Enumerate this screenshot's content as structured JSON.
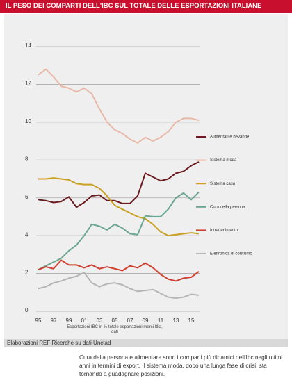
{
  "chart_data": {
    "type": "line",
    "title": "IL PESO DEI COMPARTI DELL'IBC SUL TOTALE DELLE ESPORTAZIONI ITALIANE",
    "x_label": "Esportazioni IBC in % totale esportazioni merci Itlia, dati",
    "categories": [
      "95",
      null,
      "97",
      null,
      "99",
      null,
      "01",
      null,
      "03",
      null,
      "05",
      null,
      "07",
      null,
      "09",
      null,
      "11",
      null,
      "13",
      null,
      "15",
      null
    ],
    "ylim": [
      0,
      14
    ],
    "yticks": [
      0,
      2,
      4,
      6,
      8,
      10,
      12,
      14
    ],
    "grid": true,
    "legend": "right",
    "series": [
      {
        "name": "Alimentari e bevande",
        "color": "#6b1a1f",
        "values": [
          5.9,
          5.85,
          5.75,
          5.8,
          6.05,
          5.5,
          5.75,
          6.1,
          6.15,
          5.85,
          5.85,
          5.7,
          5.7,
          6.1,
          7.3,
          7.1,
          6.9,
          7.0,
          7.3,
          7.4,
          7.7,
          7.9
        ]
      },
      {
        "name": "Sistema moda",
        "color": "#e8b8a8",
        "values": [
          12.5,
          12.8,
          12.4,
          11.9,
          11.8,
          11.6,
          11.8,
          11.5,
          10.7,
          10.0,
          9.6,
          9.4,
          9.1,
          8.9,
          9.2,
          9.0,
          9.2,
          9.5,
          10.0,
          10.2,
          10.2,
          10.1
        ]
      },
      {
        "name": "Sistema casa",
        "color": "#c9a020",
        "values": [
          7.0,
          7.0,
          7.05,
          7.0,
          6.95,
          6.75,
          6.7,
          6.7,
          6.5,
          6.1,
          5.6,
          5.4,
          5.2,
          5.0,
          4.9,
          4.6,
          4.2,
          4.0,
          4.05,
          4.1,
          4.15,
          4.1
        ]
      },
      {
        "name": "Cura della persona",
        "color": "#6aa68f",
        "values": [
          2.2,
          2.4,
          2.6,
          2.8,
          3.2,
          3.5,
          4.0,
          4.6,
          4.5,
          4.3,
          4.6,
          4.4,
          4.1,
          4.05,
          5.05,
          5.0,
          5.0,
          5.4,
          6.0,
          6.25,
          5.9,
          6.3
        ]
      },
      {
        "name": "Intrattenimento",
        "color": "#d04030",
        "values": [
          2.2,
          2.35,
          2.25,
          2.7,
          2.45,
          2.45,
          2.3,
          2.45,
          2.25,
          2.35,
          2.25,
          2.15,
          2.4,
          2.3,
          2.55,
          2.3,
          1.95,
          1.7,
          1.6,
          1.75,
          1.8,
          2.1
        ]
      },
      {
        "name": "Elettronica di consumo",
        "color": "#b5b5b5",
        "values": [
          1.2,
          1.3,
          1.5,
          1.6,
          1.75,
          1.85,
          2.05,
          1.5,
          1.3,
          1.45,
          1.5,
          1.4,
          1.2,
          1.05,
          1.1,
          1.15,
          0.95,
          0.75,
          0.7,
          0.75,
          0.9,
          0.85
        ]
      }
    ]
  },
  "source": "Elaborazioni REF Ricerche su dati Unctad",
  "caption": "Cura della persona e alimentare sono i comparti più dinamici dell'Ibc negli ultimi anni in termini di export. Il sistema moda, dopo una lunga fase di crisi, sta tornando a guadagnare posizioni."
}
